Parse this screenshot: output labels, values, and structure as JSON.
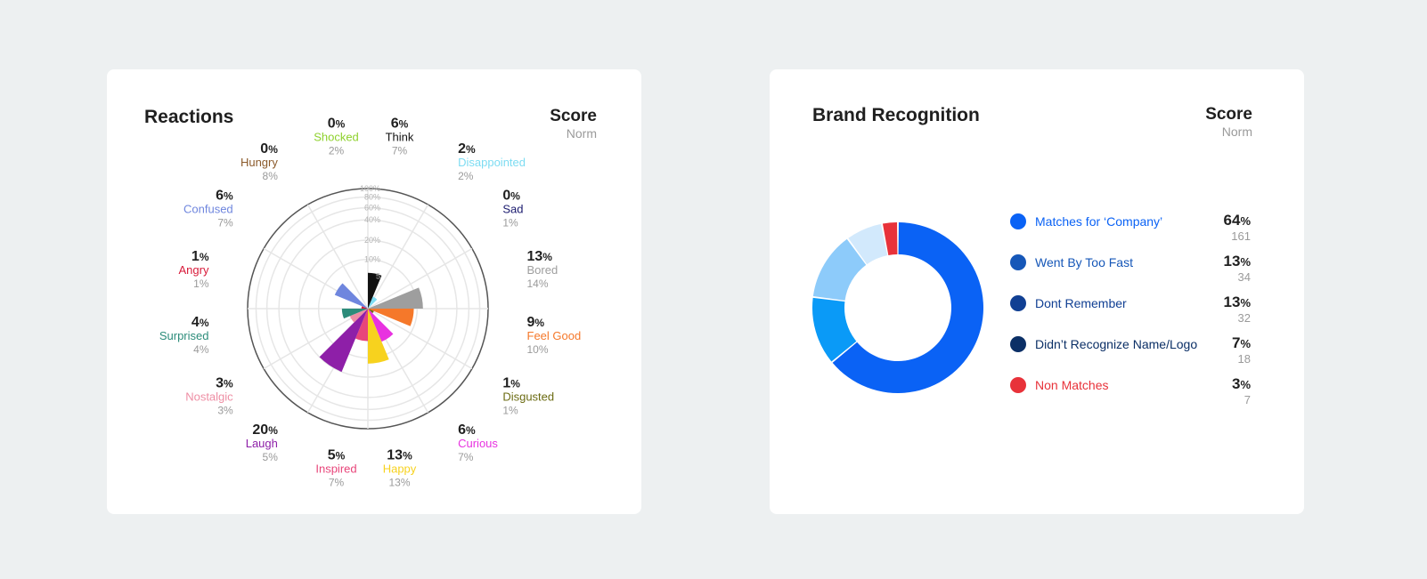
{
  "reactions": {
    "title": "Reactions",
    "score_label": "Score",
    "norm_label": "Norm",
    "percent_symbol": "%",
    "ticks": [
      "5",
      "10%",
      "20%",
      "40%",
      "60%",
      "80%",
      "100%"
    ]
  },
  "brand": {
    "title": "Brand Recognition",
    "score_label": "Score",
    "norm_label": "Norm",
    "percent_symbol": "%"
  },
  "chart_data": [
    {
      "type": "polar-bar",
      "title": "Reactions",
      "unit": "%",
      "rlim": [
        0,
        100
      ],
      "grid": true,
      "categories": [
        {
          "name": "Think",
          "score": 6,
          "norm": 7,
          "color": "#111111"
        },
        {
          "name": "Disappointed",
          "score": 2,
          "norm": 2,
          "color": "#7ddcf2"
        },
        {
          "name": "Sad",
          "score": 0,
          "norm": 1,
          "color": "#1a1a6e"
        },
        {
          "name": "Bored",
          "score": 13,
          "norm": 14,
          "color": "#9e9e9e"
        },
        {
          "name": "Feel Good",
          "score": 9,
          "norm": 10,
          "color": "#f5782a"
        },
        {
          "name": "Disgusted",
          "score": 1,
          "norm": 1,
          "color": "#6b6b12"
        },
        {
          "name": "Curious",
          "score": 6,
          "norm": 7,
          "color": "#e832e0"
        },
        {
          "name": "Happy",
          "score": 13,
          "norm": 13,
          "color": "#f7d21e"
        },
        {
          "name": "Inspired",
          "score": 5,
          "norm": 7,
          "color": "#e8457a"
        },
        {
          "name": "Laugh",
          "score": 20,
          "norm": 5,
          "color": "#8e1fa8"
        },
        {
          "name": "Nostalgic",
          "score": 3,
          "norm": 3,
          "color": "#ee8ea4"
        },
        {
          "name": "Surprised",
          "score": 4,
          "norm": 4,
          "color": "#2c8c7a"
        },
        {
          "name": "Angry",
          "score": 1,
          "norm": 1,
          "color": "#d81b3a"
        },
        {
          "name": "Confused",
          "score": 6,
          "norm": 7,
          "color": "#6f86de"
        },
        {
          "name": "Hungry",
          "score": 0,
          "norm": 8,
          "color": "#8b5a2b"
        },
        {
          "name": "Shocked",
          "score": 0,
          "norm": 2,
          "color": "#8ed12c"
        }
      ]
    },
    {
      "type": "donut",
      "title": "Brand Recognition",
      "unit": "%",
      "slices": [
        {
          "label": "Matches for ‘Company’",
          "score": 64,
          "count": 161,
          "color": "#0a62f5",
          "label_color": "#0a62f5"
        },
        {
          "label": "Went By Too Fast",
          "score": 13,
          "count": 34,
          "color": "#0a9af7",
          "dot_color": "#1657b8",
          "label_color": "#1657b8"
        },
        {
          "label": "Dont Remember",
          "score": 13,
          "count": 32,
          "color": "#8dcbfa",
          "dot_color": "#103f93",
          "label_color": "#103f93"
        },
        {
          "label": "Didn’t Recognize Name/Logo",
          "score": 7,
          "count": 18,
          "color": "#d2e9fc",
          "dot_color": "#0b2f66",
          "label_color": "#0b2f66"
        },
        {
          "label": "Non Matches",
          "score": 3,
          "count": 7,
          "color": "#e8323a",
          "label_color": "#e8323a"
        }
      ]
    }
  ]
}
